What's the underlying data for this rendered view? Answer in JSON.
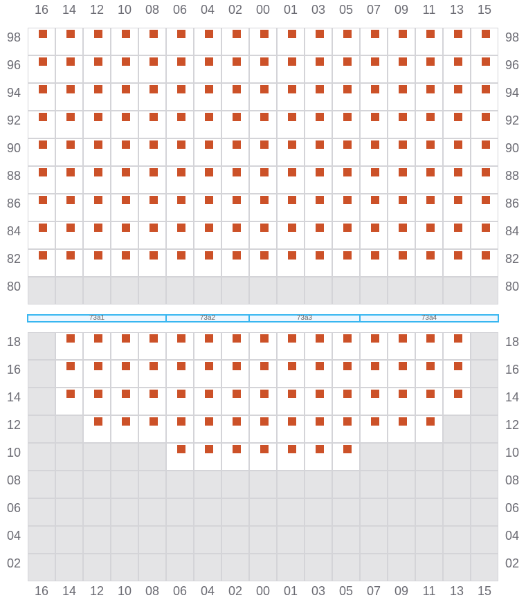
{
  "columns": [
    "16",
    "14",
    "12",
    "10",
    "08",
    "06",
    "04",
    "02",
    "00",
    "01",
    "03",
    "05",
    "07",
    "09",
    "11",
    "13",
    "15"
  ],
  "colors": {
    "occupied": "#cc5128",
    "unavailable": "#e4e4e6",
    "available": "#ffffff",
    "bar": "#38b6f0"
  },
  "top_section": {
    "rows": [
      {
        "label": "98",
        "available": "all",
        "occupied": "all"
      },
      {
        "label": "96",
        "available": "all",
        "occupied": "all"
      },
      {
        "label": "94",
        "available": "all",
        "occupied": "all"
      },
      {
        "label": "92",
        "available": "all",
        "occupied": "all"
      },
      {
        "label": "90",
        "available": "all",
        "occupied": "all"
      },
      {
        "label": "88",
        "available": "all",
        "occupied": "all"
      },
      {
        "label": "86",
        "available": "all",
        "occupied": "all"
      },
      {
        "label": "84",
        "available": "all",
        "occupied": "all"
      },
      {
        "label": "82",
        "available": "all",
        "occupied": "all"
      },
      {
        "label": "80",
        "available": "none",
        "occupied": "none"
      }
    ]
  },
  "segments": [
    {
      "label": "73a1",
      "from": "16",
      "to": "08"
    },
    {
      "label": "73a2",
      "from": "06",
      "to": "02"
    },
    {
      "label": "73a3",
      "from": "00",
      "to": "05"
    },
    {
      "label": "73a4",
      "from": "07",
      "to": "15"
    }
  ],
  "bottom_section": {
    "rows": [
      {
        "label": "18",
        "range": [
          "14",
          "13"
        ]
      },
      {
        "label": "16",
        "range": [
          "14",
          "13"
        ]
      },
      {
        "label": "14",
        "range": [
          "14",
          "13"
        ]
      },
      {
        "label": "12",
        "range": [
          "12",
          "11"
        ]
      },
      {
        "label": "10",
        "range": [
          "06",
          "05"
        ]
      },
      {
        "label": "08",
        "range": null
      },
      {
        "label": "06",
        "range": null
      },
      {
        "label": "04",
        "range": null
      },
      {
        "label": "02",
        "range": null
      }
    ]
  }
}
